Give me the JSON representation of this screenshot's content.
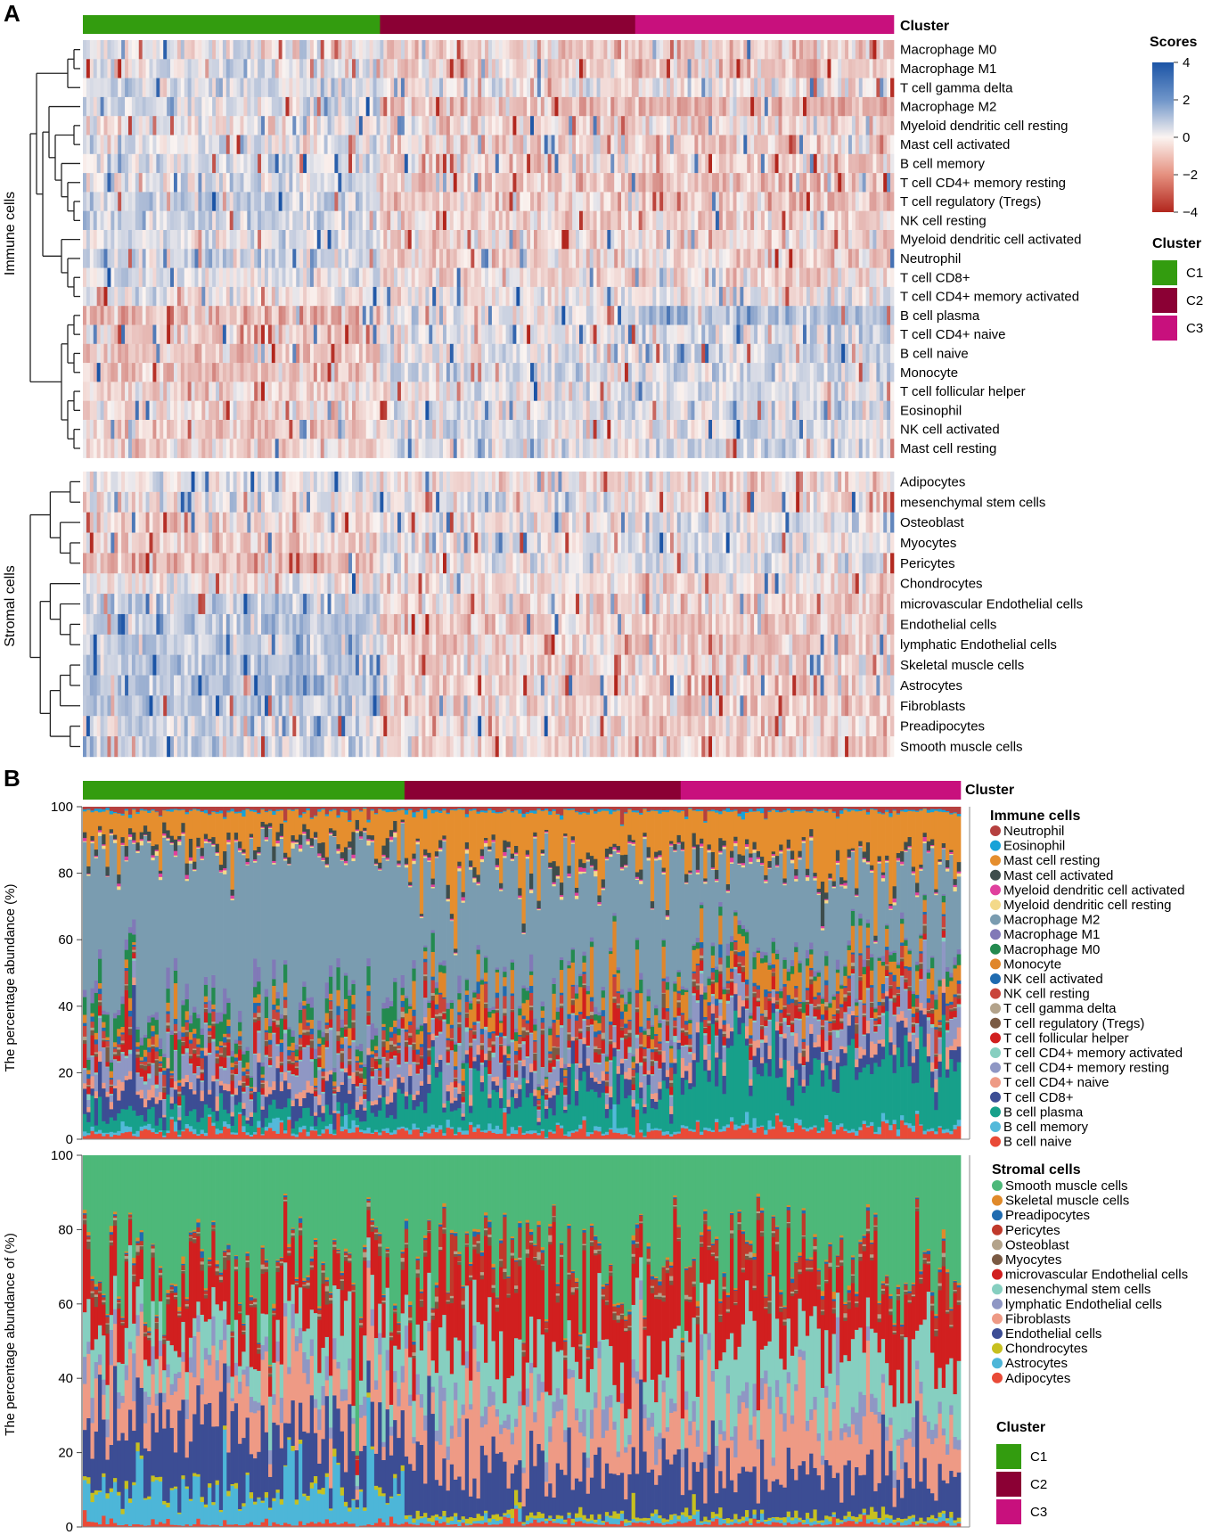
{
  "chart_data": {
    "type": "heatmap",
    "panels": [
      "A",
      "B"
    ],
    "cluster": {
      "title": "Cluster",
      "groups": [
        {
          "name": "C1",
          "color": "#339C0F",
          "n": 85
        },
        {
          "name": "C2",
          "color": "#8B0034",
          "n": 73
        },
        {
          "name": "C3",
          "color": "#C8107D",
          "n": 74
        }
      ]
    },
    "scores": {
      "title": "Scores",
      "ticks": [
        4,
        2,
        0,
        -2,
        -4
      ],
      "tick_labels": [
        "4",
        "2",
        "0",
        "−2",
        "−4"
      ],
      "range": [
        -4,
        4
      ]
    },
    "heatmap": {
      "immune_label": "Immune cells",
      "stromal_label": "Stromal cells",
      "immune_rows": [
        "Macrophage M0",
        "Macrophage M1",
        "T cell gamma delta",
        "Macrophage M2",
        "Myeloid dendritic cell resting",
        "Mast cell activated",
        "B cell memory",
        "T cell CD4+ memory resting",
        "T cell regulatory (Tregs)",
        "NK cell resting",
        "Myeloid dendritic cell activated",
        "Neutrophil",
        "T cell CD8+",
        "T cell CD4+ memory activated",
        "B cell plasma",
        "T cell CD4+ naive",
        "B cell naive",
        "Monocyte",
        "T cell follicular helper",
        "Eosinophil",
        "NK cell activated",
        "Mast cell resting"
      ],
      "immune_bias": [
        [
          0.1,
          -0.4,
          -0.5
        ],
        [
          0.3,
          -0.4,
          -0.6
        ],
        [
          0.3,
          0.0,
          0.0
        ],
        [
          0.4,
          -0.6,
          -1.0
        ],
        [
          0.0,
          -0.3,
          -0.4
        ],
        [
          0.2,
          -0.3,
          -0.5
        ],
        [
          0.3,
          -0.3,
          -0.5
        ],
        [
          0.4,
          -0.5,
          -0.8
        ],
        [
          0.7,
          -0.4,
          -0.6
        ],
        [
          0.6,
          -0.3,
          -0.4
        ],
        [
          0.3,
          -0.3,
          -0.4
        ],
        [
          0.4,
          -0.3,
          -0.3
        ],
        [
          0.3,
          -0.3,
          -0.3
        ],
        [
          0.1,
          0.0,
          0.0
        ],
        [
          -0.8,
          0.2,
          0.9
        ],
        [
          -0.5,
          0.1,
          0.5
        ],
        [
          -0.6,
          0.2,
          0.5
        ],
        [
          -0.6,
          0.4,
          0.5
        ],
        [
          -0.3,
          0.2,
          0.4
        ],
        [
          -0.3,
          0.2,
          0.3
        ],
        [
          -0.5,
          0.3,
          0.4
        ],
        [
          -0.4,
          0.3,
          0.4
        ]
      ],
      "stromal_rows": [
        "Adipocytes",
        "mesenchymal stem cells",
        "Osteoblast",
        "Myocytes",
        "Pericytes",
        "Chondrocytes",
        "microvascular Endothelial cells",
        "Endothelial cells",
        "lymphatic Endothelial cells",
        "Skeletal muscle cells",
        "Astrocytes",
        "Fibroblasts",
        "Preadipocytes",
        "Smooth muscle cells"
      ],
      "stromal_bias": [
        [
          0.3,
          -0.2,
          -0.3
        ],
        [
          0.2,
          0.1,
          -0.3
        ],
        [
          -0.4,
          0.1,
          0.3
        ],
        [
          -0.4,
          0.2,
          0.3
        ],
        [
          -0.9,
          0.2,
          0.4
        ],
        [
          0.1,
          -0.2,
          -0.2
        ],
        [
          0.7,
          -0.4,
          -0.5
        ],
        [
          0.8,
          -0.4,
          -0.5
        ],
        [
          0.7,
          -0.4,
          -0.5
        ],
        [
          0.9,
          -0.4,
          -0.3
        ],
        [
          1.0,
          -0.5,
          -0.4
        ],
        [
          0.8,
          -0.3,
          -0.5
        ],
        [
          0.5,
          -0.2,
          -0.4
        ],
        [
          0.6,
          -0.3,
          -0.4
        ]
      ]
    },
    "immune_bar": {
      "ylabel": "The percentage abundance (%)",
      "yticks": [
        0,
        20,
        40,
        60,
        80,
        100
      ],
      "legend_title": "Immune cells",
      "categories": [
        {
          "name": "Neutrophil",
          "color": "#B5403F"
        },
        {
          "name": "Eosinophil",
          "color": "#17A2D8"
        },
        {
          "name": "Mast cell resting",
          "color": "#E58E2E"
        },
        {
          "name": "Mast cell activated",
          "color": "#3E4D4C"
        },
        {
          "name": "Myeloid dendritic cell activated",
          "color": "#E0409E"
        },
        {
          "name": "Myeloid dendritic cell resting",
          "color": "#F3D98A"
        },
        {
          "name": "Macrophage M2",
          "color": "#7A9CB0"
        },
        {
          "name": "Macrophage M1",
          "color": "#8179B7"
        },
        {
          "name": "Macrophage M0",
          "color": "#238A4F"
        },
        {
          "name": "Monocyte",
          "color": "#E0862A"
        },
        {
          "name": "NK cell activated",
          "color": "#1F6BB0"
        },
        {
          "name": "NK cell resting",
          "color": "#C9443A"
        },
        {
          "name": "T cell gamma delta",
          "color": "#B3A38B"
        },
        {
          "name": "T cell regulatory (Tregs)",
          "color": "#7A5A43"
        },
        {
          "name": "T cell follicular helper",
          "color": "#D11F1F"
        },
        {
          "name": "T cell CD4+ memory activated",
          "color": "#86CFC0"
        },
        {
          "name": "T cell CD4+ memory resting",
          "color": "#8F97C4"
        },
        {
          "name": "T cell CD4+ naive",
          "color": "#EE9A85"
        },
        {
          "name": "T cell CD8+",
          "color": "#3C4D94"
        },
        {
          "name": "B cell plasma",
          "color": "#17A08A"
        },
        {
          "name": "B cell memory",
          "color": "#53B9DA"
        },
        {
          "name": "B cell naive",
          "color": "#E94A37"
        }
      ],
      "mean_percent": {
        "C1": {
          "B cell naive": 2,
          "B cell memory": 1,
          "B cell plasma": 4,
          "T cell CD8+": 5,
          "T cell CD4+ naive": 2,
          "T cell CD4+ memory resting": 6,
          "T cell CD4+ memory activated": 0.5,
          "T cell follicular helper": 3,
          "T cell regulatory (Tregs)": 1,
          "T cell gamma delta": 0.5,
          "NK cell resting": 2,
          "NK cell activated": 1,
          "Monocyte": 2,
          "Macrophage M0": 4,
          "Macrophage M1": 2,
          "Macrophage M2": 47,
          "Myeloid dendritic cell resting": 0.5,
          "Myeloid dendritic cell activated": 0.5,
          "Mast cell activated": 2,
          "Mast cell resting": 8,
          "Eosinophil": 0.5,
          "Neutrophil": 1
        },
        "C2": {
          "B cell naive": 2,
          "B cell memory": 1,
          "B cell plasma": 9,
          "T cell CD8+": 4,
          "T cell CD4+ naive": 2,
          "T cell CD4+ memory resting": 6,
          "T cell CD4+ memory activated": 0.5,
          "T cell follicular helper": 3,
          "T cell regulatory (Tregs)": 1,
          "T cell gamma delta": 0.5,
          "NK cell resting": 3,
          "NK cell activated": 1,
          "Monocyte": 5,
          "Macrophage M0": 2,
          "Macrophage M1": 1,
          "Macrophage M2": 40,
          "Myeloid dendritic cell resting": 0.5,
          "Myeloid dendritic cell activated": 0.5,
          "Mast cell activated": 2,
          "Mast cell resting": 14,
          "Eosinophil": 0.5,
          "Neutrophil": 1
        },
        "C3": {
          "B cell naive": 3,
          "B cell memory": 1,
          "B cell plasma": 18,
          "T cell CD8+": 5,
          "T cell CD4+ naive": 3,
          "T cell CD4+ memory resting": 6,
          "T cell CD4+ memory activated": 0.5,
          "T cell follicular helper": 3,
          "T cell regulatory (Tregs)": 1,
          "T cell gamma delta": 0.5,
          "NK cell resting": 3,
          "NK cell activated": 1,
          "Monocyte": 6,
          "Macrophage M0": 2,
          "Macrophage M1": 1,
          "Macrophage M2": 27,
          "Myeloid dendritic cell resting": 0.5,
          "Myeloid dendritic cell activated": 0.5,
          "Mast cell activated": 2,
          "Mast cell resting": 15,
          "Eosinophil": 0.5,
          "Neutrophil": 1
        }
      }
    },
    "stromal_bar": {
      "ylabel": "The percentage abundance of  (%)",
      "yticks": [
        0,
        20,
        40,
        60,
        80,
        100
      ],
      "legend_title": "Stromal cells",
      "categories": [
        {
          "name": "Smooth muscle cells",
          "color": "#4DB879"
        },
        {
          "name": "Skeletal muscle cells",
          "color": "#E08A2A"
        },
        {
          "name": "Preadipocytes",
          "color": "#1F6BB0"
        },
        {
          "name": "Pericytes",
          "color": "#C0392B"
        },
        {
          "name": "Osteoblast",
          "color": "#B3A38B"
        },
        {
          "name": "Myocytes",
          "color": "#7A5A43"
        },
        {
          "name": "microvascular Endothelial cells",
          "color": "#D11F1F"
        },
        {
          "name": "mesenchymal stem cells",
          "color": "#86CFC0"
        },
        {
          "name": "lymphatic Endothelial cells",
          "color": "#8F97C4"
        },
        {
          "name": "Fibroblasts",
          "color": "#EE9A85"
        },
        {
          "name": "Endothelial cells",
          "color": "#3C4D94"
        },
        {
          "name": "Chondrocytes",
          "color": "#C7C01F"
        },
        {
          "name": "Astrocytes",
          "color": "#4DB6D8"
        },
        {
          "name": "Adipocytes",
          "color": "#E94A37"
        }
      ],
      "mean_percent": {
        "C1": {
          "Adipocytes": 1,
          "Astrocytes": 9,
          "Chondrocytes": 1,
          "Endothelial cells": 16,
          "Fibroblasts": 12,
          "lymphatic Endothelial cells": 4,
          "mesenchymal stem cells": 10,
          "microvascular Endothelial cells": 12,
          "Myocytes": 1,
          "Osteoblast": 0.5,
          "Pericytes": 1,
          "Preadipocytes": 0.5,
          "Skeletal muscle cells": 0.5,
          "Smooth muscle cells": 31
        },
        "C2": {
          "Adipocytes": 1,
          "Astrocytes": 1,
          "Chondrocytes": 1,
          "Endothelial cells": 12,
          "Fibroblasts": 14,
          "lymphatic Endothelial cells": 4,
          "mesenchymal stem cells": 15,
          "microvascular Endothelial cells": 17,
          "Myocytes": 1,
          "Osteoblast": 0.5,
          "Pericytes": 3,
          "Preadipocytes": 0.5,
          "Skeletal muscle cells": 0.5,
          "Smooth muscle cells": 29
        },
        "C3": {
          "Adipocytes": 1,
          "Astrocytes": 1,
          "Chondrocytes": 1,
          "Endothelial cells": 12,
          "Fibroblasts": 14,
          "lymphatic Endothelial cells": 4,
          "mesenchymal stem cells": 15,
          "microvascular Endothelial cells": 17,
          "Myocytes": 1,
          "Osteoblast": 0.5,
          "Pericytes": 3,
          "Preadipocytes": 0.5,
          "Skeletal muscle cells": 0.5,
          "Smooth muscle cells": 29
        }
      }
    }
  }
}
